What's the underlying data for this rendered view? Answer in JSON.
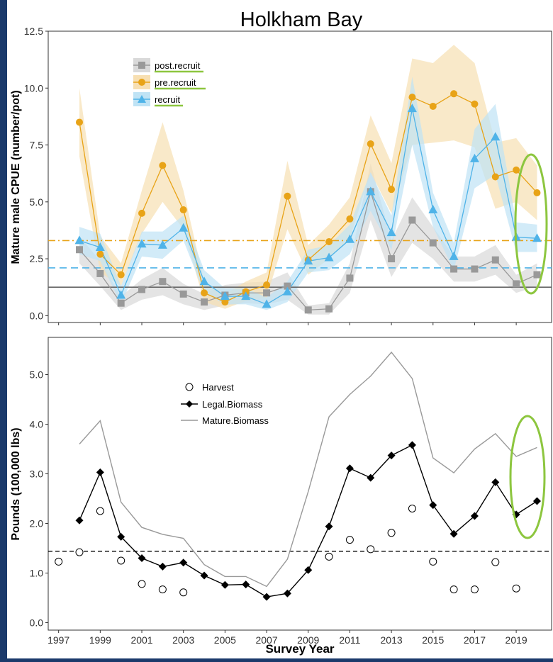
{
  "colors": {
    "background": "#1b3a6b",
    "panel": "#ffffff",
    "post_recruit": "#999999",
    "post_recruit_band": "#d9d9d9",
    "pre_recruit": "#e8a317",
    "pre_recruit_band": "#f7dfb2",
    "recruit": "#4fb3e8",
    "recruit_band": "#bfe3f5",
    "highlight_ellipse": "#8dc63f",
    "legend_underline": "#8dc63f"
  },
  "title": "Holkham Bay",
  "chart_data": [
    {
      "type": "line",
      "ylabel": "Mature male CPUE (number/pot)",
      "ylim": [
        -0.3,
        12.5
      ],
      "yticks": [
        "0.0",
        "2.5",
        "5.0",
        "7.5",
        "10.0",
        "12.5"
      ],
      "xlim": [
        1996.5,
        2020.7
      ],
      "legend_position": "top-left",
      "legend": [
        "post.recruit",
        "pre.recruit",
        "recruit"
      ],
      "reference_lines": [
        {
          "series": "pre.recruit",
          "y": 3.3,
          "style": "dash-dot"
        },
        {
          "series": "recruit",
          "y": 2.1,
          "style": "dashed"
        },
        {
          "series": "post.recruit",
          "y": 1.25,
          "style": "solid"
        }
      ],
      "x": [
        1998,
        1999,
        2000,
        2001,
        2002,
        2003,
        2004,
        2005,
        2006,
        2007,
        2008,
        2009,
        2010,
        2011,
        2012,
        2013,
        2014,
        2015,
        2016,
        2017,
        2018,
        2019,
        2020
      ],
      "series": [
        {
          "name": "post.recruit",
          "marker": "square",
          "values": [
            2.9,
            1.85,
            0.55,
            1.15,
            1.5,
            0.95,
            0.6,
            0.9,
            1.0,
            1.0,
            1.3,
            0.25,
            0.3,
            1.65,
            5.45,
            2.5,
            4.2,
            3.2,
            2.05,
            2.05,
            2.45,
            1.4,
            1.8
          ],
          "lower": [
            2.3,
            1.3,
            0.25,
            0.7,
            0.9,
            0.5,
            0.25,
            0.45,
            0.55,
            0.5,
            0.7,
            0.05,
            0.05,
            1.0,
            4.2,
            1.7,
            3.2,
            2.5,
            1.5,
            1.5,
            1.8,
            1.0,
            1.3
          ],
          "upper": [
            3.5,
            2.4,
            0.85,
            1.6,
            2.1,
            1.4,
            0.95,
            1.35,
            1.45,
            1.5,
            1.9,
            0.45,
            0.55,
            2.3,
            6.7,
            3.3,
            5.2,
            3.9,
            2.6,
            2.6,
            3.1,
            1.8,
            2.3
          ]
        },
        {
          "name": "pre.recruit",
          "marker": "circle",
          "values": [
            8.5,
            2.7,
            1.8,
            4.5,
            6.6,
            4.65,
            1.0,
            0.6,
            1.05,
            1.35,
            5.25,
            2.45,
            3.25,
            4.25,
            7.55,
            5.55,
            9.6,
            9.2,
            9.75,
            9.3,
            6.1,
            6.4,
            5.4
          ],
          "lower": [
            7.0,
            1.9,
            1.3,
            3.6,
            5.0,
            3.8,
            0.6,
            0.3,
            0.65,
            0.8,
            3.8,
            1.8,
            2.5,
            3.4,
            6.3,
            4.5,
            7.5,
            7.6,
            7.7,
            7.4,
            4.7,
            5.0,
            4.2
          ],
          "upper": [
            10.0,
            3.5,
            2.3,
            5.5,
            8.5,
            5.5,
            1.5,
            0.95,
            1.5,
            1.9,
            6.8,
            3.1,
            4.0,
            5.2,
            8.8,
            6.7,
            11.3,
            11.1,
            11.9,
            11.1,
            7.6,
            7.8,
            6.6
          ]
        },
        {
          "name": "recruit",
          "marker": "triangle",
          "values": [
            3.3,
            3.0,
            0.9,
            3.15,
            3.1,
            3.85,
            1.5,
            0.85,
            0.85,
            0.5,
            1.05,
            2.4,
            2.55,
            3.35,
            5.45,
            3.65,
            9.1,
            4.65,
            2.6,
            6.9,
            7.85,
            3.45,
            3.4
          ],
          "lower": [
            2.7,
            2.4,
            0.5,
            2.6,
            2.5,
            3.3,
            1.0,
            0.5,
            0.5,
            0.25,
            0.6,
            1.9,
            2.0,
            2.7,
            4.6,
            2.9,
            7.5,
            3.9,
            2.0,
            5.6,
            6.2,
            2.8,
            2.8
          ],
          "upper": [
            3.9,
            3.6,
            1.3,
            3.7,
            3.7,
            4.4,
            2.0,
            1.2,
            1.2,
            0.8,
            1.5,
            2.9,
            3.1,
            4.0,
            6.3,
            4.4,
            10.5,
            5.4,
            3.2,
            8.2,
            9.3,
            4.1,
            4.0
          ]
        }
      ]
    },
    {
      "type": "line",
      "ylabel": "Pounds (100,000 lbs)",
      "xlabel": "Survey Year",
      "ylim": [
        -0.15,
        5.75
      ],
      "yticks": [
        "0.0",
        "1.0",
        "2.0",
        "3.0",
        "4.0",
        "5.0"
      ],
      "xlim": [
        1996.5,
        2020.7
      ],
      "xticks": [
        "1997",
        "1999",
        "2001",
        "2003",
        "2005",
        "2007",
        "2009",
        "2011",
        "2013",
        "2015",
        "2017",
        "2019"
      ],
      "legend_position": "top-left",
      "legend": [
        "Harvest",
        "Legal.Biomass",
        "Mature.Biomass"
      ],
      "reference_lines": [
        {
          "y": 1.44,
          "style": "dashed"
        }
      ],
      "series": [
        {
          "name": "Harvest",
          "marker": "open-circle",
          "x": [
            1997,
            1998,
            1999,
            2000,
            2001,
            2002,
            2003,
            2010,
            2011,
            2012,
            2013,
            2014,
            2015,
            2016,
            2017,
            2018,
            2019
          ],
          "values": [
            1.23,
            1.42,
            2.25,
            1.25,
            0.78,
            0.67,
            0.61,
            1.33,
            1.67,
            1.48,
            1.81,
            2.3,
            1.23,
            0.67,
            0.67,
            1.22,
            0.69
          ]
        },
        {
          "name": "Legal.Biomass",
          "marker": "diamond",
          "x": [
            1998,
            1999,
            2000,
            2001,
            2002,
            2003,
            2004,
            2005,
            2006,
            2007,
            2008,
            2009,
            2010,
            2011,
            2012,
            2013,
            2014,
            2015,
            2016,
            2017,
            2018,
            2019,
            2020
          ],
          "values": [
            2.06,
            3.03,
            1.73,
            1.3,
            1.13,
            1.21,
            0.95,
            0.76,
            0.77,
            0.52,
            0.59,
            1.06,
            1.94,
            3.11,
            2.92,
            3.37,
            3.58,
            2.37,
            1.79,
            2.15,
            2.83,
            2.18,
            2.45
          ]
        },
        {
          "name": "Mature.Biomass",
          "marker": "none",
          "x": [
            1998,
            1999,
            2000,
            2001,
            2002,
            2003,
            2004,
            2005,
            2006,
            2007,
            2008,
            2009,
            2010,
            2011,
            2012,
            2013,
            2014,
            2015,
            2016,
            2017,
            2018,
            2019,
            2020
          ],
          "values": [
            3.6,
            4.07,
            2.43,
            1.92,
            1.78,
            1.7,
            1.17,
            0.93,
            0.93,
            0.73,
            1.28,
            2.64,
            4.15,
            4.6,
            4.97,
            5.45,
            4.92,
            3.32,
            3.02,
            3.5,
            3.81,
            3.35,
            3.53
          ]
        }
      ]
    }
  ]
}
